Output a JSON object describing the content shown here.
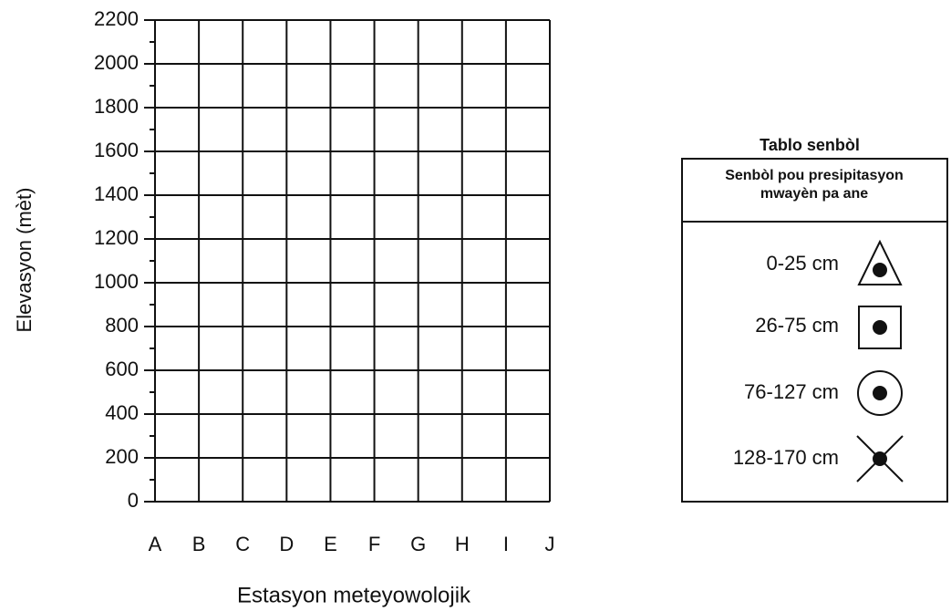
{
  "chart_data": {
    "type": "line",
    "x_label": "Estasyon meteyowolojik",
    "y_label": "Elevasyon (mèt)",
    "categories": [
      "A",
      "B",
      "C",
      "D",
      "E",
      "F",
      "G",
      "H",
      "I",
      "J"
    ],
    "series": [],
    "ylim": [
      0,
      2200
    ],
    "yticks": [
      0,
      200,
      400,
      600,
      800,
      1000,
      1200,
      1400,
      1600,
      1800,
      2000,
      2200
    ],
    "minor_yticks": [
      100,
      300,
      500,
      700,
      900,
      1100,
      1300,
      1500,
      1700,
      1900,
      2100
    ],
    "grid": true
  },
  "legend_table": {
    "title": "Tablo senbòl",
    "header": [
      "Senbòl pou presipitasyon",
      "mwayèn pa ane"
    ],
    "rows": [
      "0-25 cm",
      "26-75 cm",
      "76-127 cm",
      "128-170 cm"
    ]
  }
}
